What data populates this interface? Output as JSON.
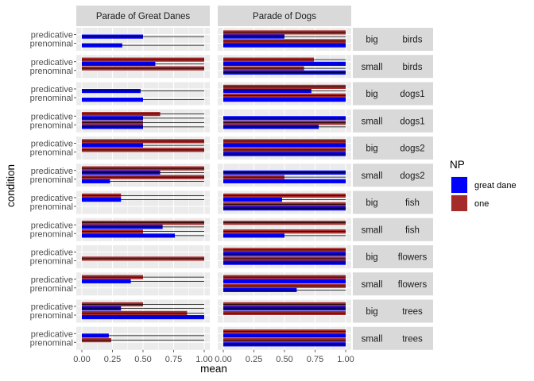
{
  "chart_data": {
    "type": "bar",
    "orientation": "horizontal",
    "xlabel": "mean",
    "ylabel": "condition",
    "xlim": [
      0,
      1
    ],
    "x_ticks": [
      "0.00",
      "0.25",
      "0.50",
      "0.75",
      "1.00"
    ],
    "y_categories": [
      "predicative",
      "prenominal"
    ],
    "columns": [
      "Parade of Great Danes",
      "Parade of Dogs"
    ],
    "legend": {
      "title": "NP",
      "position": "right",
      "entries": [
        {
          "key": "great_dane",
          "label": "great dane",
          "color": "#0000FF"
        },
        {
          "key": "one",
          "label": "one",
          "color": "#A52A2A"
        }
      ]
    },
    "grid": true,
    "rows": [
      {
        "size": "big",
        "noun": "birds",
        "panels": [
          {
            "predicative": {
              "great_dane": 0.5,
              "one": null
            },
            "prenominal": {
              "great_dane": 0.33,
              "one": null
            }
          },
          {
            "predicative": {
              "great_dane": 0.5,
              "one": 1.0
            },
            "prenominal": {
              "great_dane": 1.0,
              "one": 1.0
            }
          }
        ]
      },
      {
        "size": "small",
        "noun": "birds",
        "panels": [
          {
            "predicative": {
              "great_dane": 0.6,
              "one": 1.0
            },
            "prenominal": {
              "great_dane": null,
              "one": 1.0
            }
          },
          {
            "predicative": {
              "great_dane": 1.0,
              "one": 0.74
            },
            "prenominal": {
              "great_dane": 1.0,
              "one": 0.66
            }
          }
        ]
      },
      {
        "size": "big",
        "noun": "dogs1",
        "panels": [
          {
            "predicative": {
              "great_dane": 0.48,
              "one": null
            },
            "prenominal": {
              "great_dane": 0.5,
              "one": null
            }
          },
          {
            "predicative": {
              "great_dane": 0.72,
              "one": 1.0
            },
            "prenominal": {
              "great_dane": 1.0,
              "one": 1.0
            }
          }
        ]
      },
      {
        "size": "small",
        "noun": "dogs1",
        "panels": [
          {
            "predicative": {
              "great_dane": 0.5,
              "one": 0.64
            },
            "prenominal": {
              "great_dane": 0.5,
              "one": 0.5
            }
          },
          {
            "predicative": {
              "great_dane": 1.0,
              "one": null
            },
            "prenominal": {
              "great_dane": 0.78,
              "one": 1.0
            }
          }
        ]
      },
      {
        "size": "big",
        "noun": "dogs2",
        "panels": [
          {
            "predicative": {
              "great_dane": 0.5,
              "one": 1.0
            },
            "prenominal": {
              "great_dane": null,
              "one": 1.0
            }
          },
          {
            "predicative": {
              "great_dane": 1.0,
              "one": 1.0
            },
            "prenominal": {
              "great_dane": 1.0,
              "one": 1.0
            }
          }
        ]
      },
      {
        "size": "small",
        "noun": "dogs2",
        "panels": [
          {
            "predicative": {
              "great_dane": 0.64,
              "one": 1.0
            },
            "prenominal": {
              "great_dane": 0.23,
              "one": 1.0
            }
          },
          {
            "predicative": {
              "great_dane": 1.0,
              "one": null
            },
            "prenominal": {
              "great_dane": 1.0,
              "one": 0.5
            }
          }
        ]
      },
      {
        "size": "big",
        "noun": "fish",
        "panels": [
          {
            "predicative": {
              "great_dane": 0.32,
              "one": 0.32
            },
            "prenominal": {
              "great_dane": null,
              "one": null
            }
          },
          {
            "predicative": {
              "great_dane": 0.48,
              "one": 1.0
            },
            "prenominal": {
              "great_dane": 1.0,
              "one": 1.0
            }
          }
        ]
      },
      {
        "size": "small",
        "noun": "fish",
        "panels": [
          {
            "predicative": {
              "great_dane": 0.66,
              "one": 1.0
            },
            "prenominal": {
              "great_dane": 0.76,
              "one": 0.5
            }
          },
          {
            "predicative": {
              "great_dane": null,
              "one": 1.0
            },
            "prenominal": {
              "great_dane": 0.5,
              "one": 1.0
            }
          }
        ]
      },
      {
        "size": "big",
        "noun": "flowers",
        "panels": [
          {
            "predicative": {
              "great_dane": null,
              "one": null
            },
            "prenominal": {
              "great_dane": null,
              "one": 1.0
            }
          },
          {
            "predicative": {
              "great_dane": 1.0,
              "one": 1.0
            },
            "prenominal": {
              "great_dane": 1.0,
              "one": 1.0
            }
          }
        ]
      },
      {
        "size": "small",
        "noun": "flowers",
        "panels": [
          {
            "predicative": {
              "great_dane": 0.4,
              "one": 0.5
            },
            "prenominal": {
              "great_dane": null,
              "one": null
            }
          },
          {
            "predicative": {
              "great_dane": 1.0,
              "one": 1.0
            },
            "prenominal": {
              "great_dane": 0.6,
              "one": 1.0
            }
          }
        ]
      },
      {
        "size": "big",
        "noun": "trees",
        "panels": [
          {
            "predicative": {
              "great_dane": 0.32,
              "one": 0.5
            },
            "prenominal": {
              "great_dane": 1.0,
              "one": 0.86
            }
          },
          {
            "predicative": {
              "great_dane": 1.0,
              "one": 1.0
            },
            "prenominal": {
              "great_dane": null,
              "one": 1.0
            }
          }
        ]
      },
      {
        "size": "small",
        "noun": "trees",
        "panels": [
          {
            "predicative": {
              "great_dane": 0.22,
              "one": null
            },
            "prenominal": {
              "great_dane": null,
              "one": 0.24
            }
          },
          {
            "predicative": {
              "great_dane": 1.0,
              "one": 1.0
            },
            "prenominal": {
              "great_dane": 1.0,
              "one": 1.0
            }
          }
        ]
      }
    ]
  }
}
